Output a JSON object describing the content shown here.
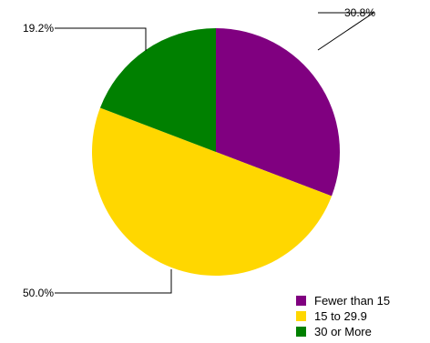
{
  "chart_data": {
    "type": "pie",
    "categories": [
      "Fewer than 15",
      "15 to 29.9",
      "30 or More"
    ],
    "values": [
      30.8,
      50.0,
      19.2
    ],
    "labels": [
      "30.8%",
      "50.0%",
      "19.2%"
    ],
    "colors": [
      "#800080",
      "#ffd700",
      "#008000"
    ],
    "legend_position": "bottom-right"
  }
}
